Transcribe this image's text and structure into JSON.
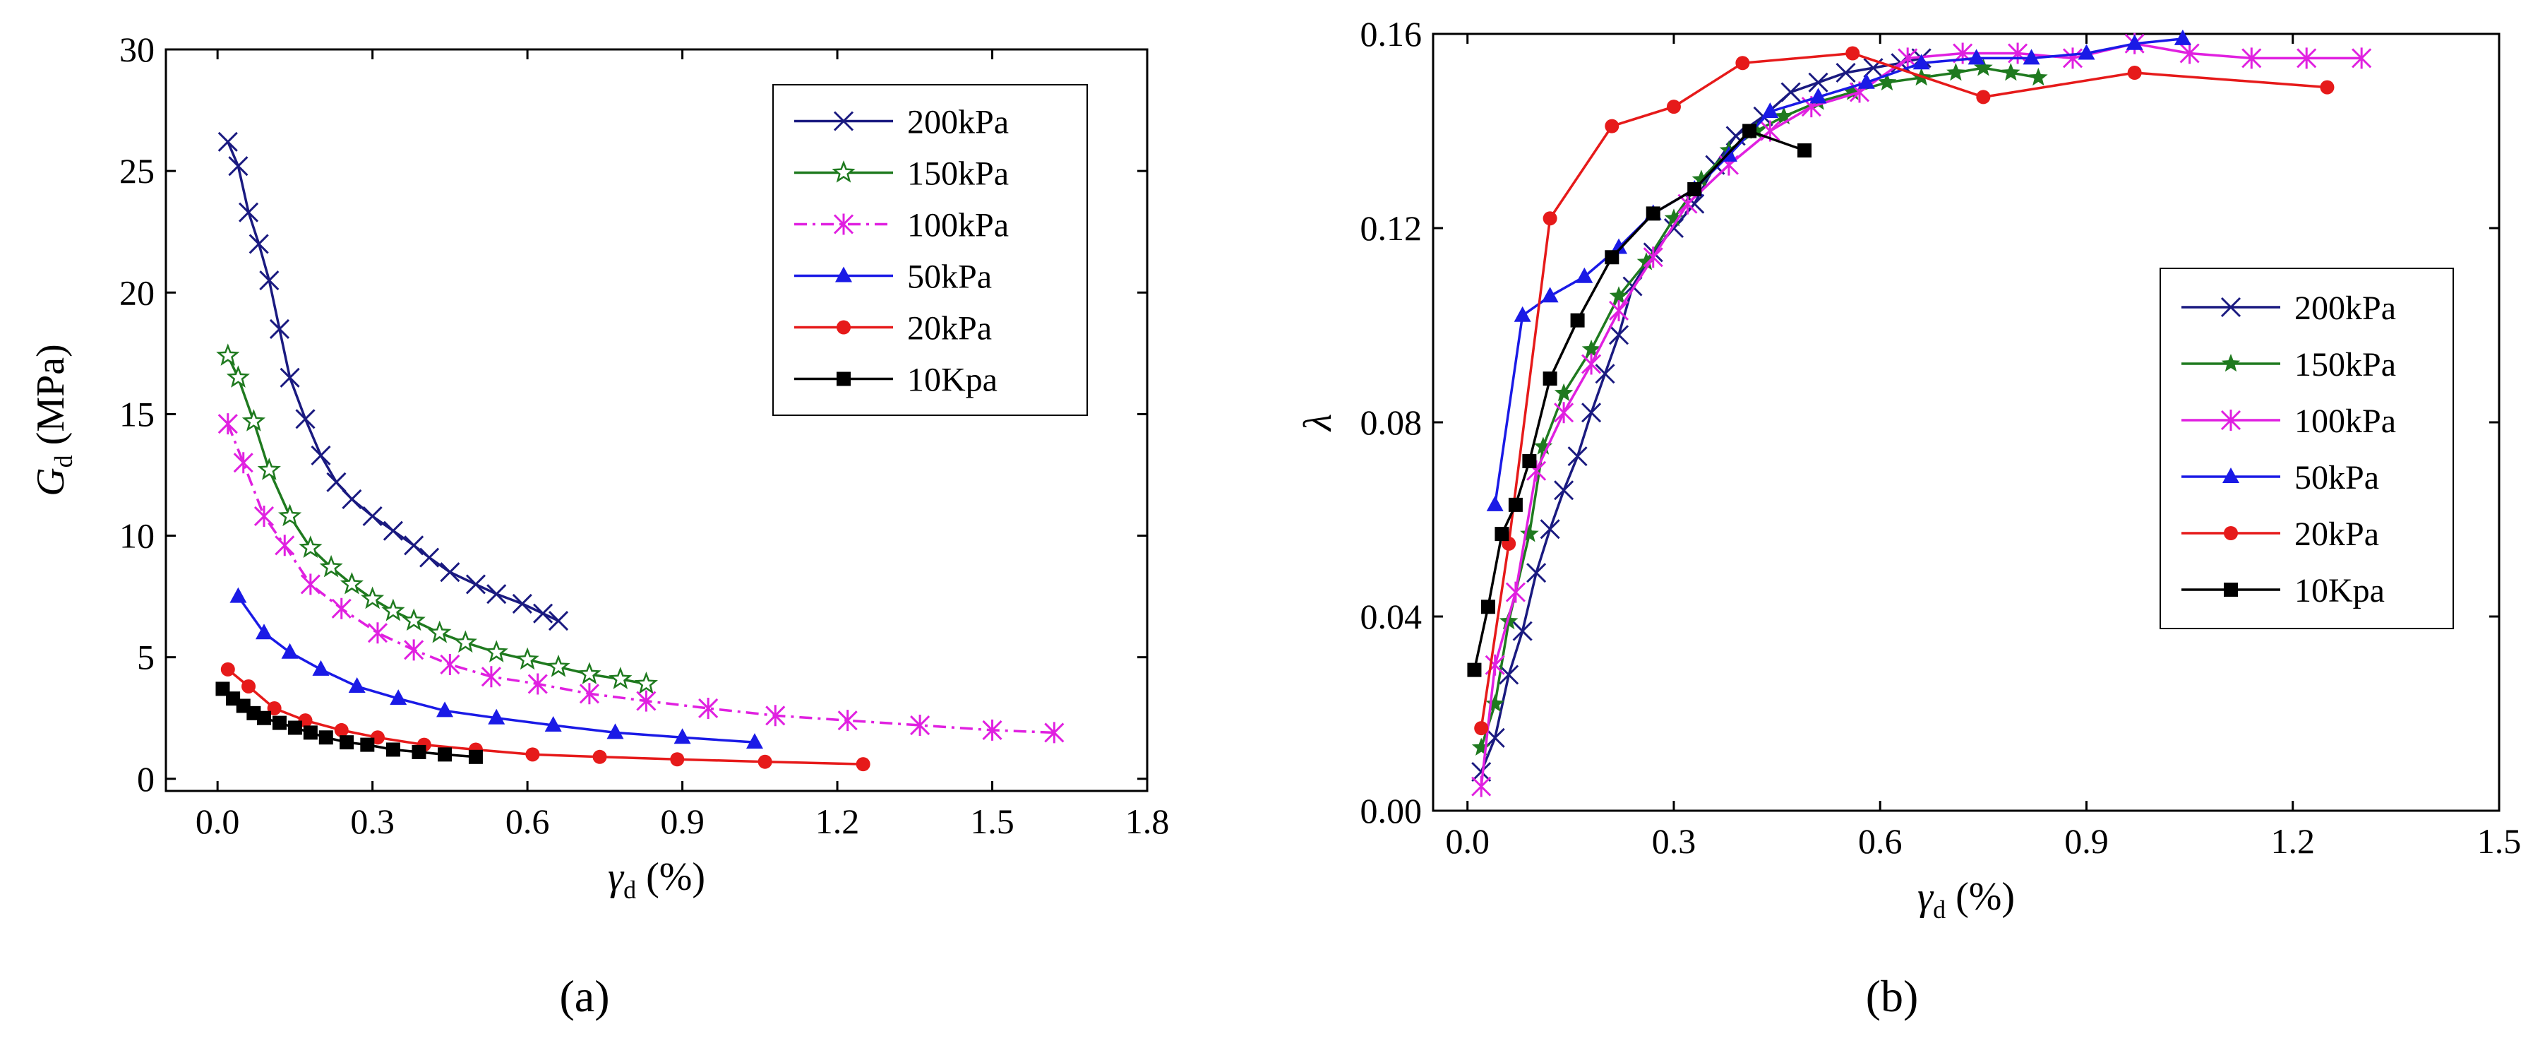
{
  "chart_data": [
    {
      "type": "line",
      "panel_label": "(a)",
      "ylabel_main": "G",
      "ylabel_sub": "d",
      "ylabel_unit": " (MPa)",
      "xlabel_main": "γ",
      "xlabel_sub": "d",
      "xlabel_unit": " (%)",
      "xlim": [
        -0.1,
        1.8
      ],
      "ylim": [
        -0.5,
        30
      ],
      "xticks": [
        0.0,
        0.3,
        0.6,
        0.9,
        1.2,
        1.5,
        1.8
      ],
      "xtick_labels": [
        "0.0",
        "0.3",
        "0.6",
        "0.9",
        "1.2",
        "1.5",
        "1.8"
      ],
      "yticks": [
        0,
        5,
        10,
        15,
        20,
        25,
        30
      ],
      "ytick_labels": [
        "0",
        "5",
        "10",
        "15",
        "20",
        "25",
        "30"
      ],
      "legend_position": "top-right",
      "series": [
        {
          "name": "200kPa",
          "color": "#1a1a80",
          "marker": "x",
          "dash": "",
          "x": [
            0.02,
            0.04,
            0.06,
            0.08,
            0.1,
            0.12,
            0.14,
            0.17,
            0.2,
            0.23,
            0.26,
            0.3,
            0.34,
            0.38,
            0.41,
            0.45,
            0.5,
            0.54,
            0.59,
            0.63,
            0.66
          ],
          "y": [
            26.2,
            25.2,
            23.3,
            22.0,
            20.5,
            18.5,
            16.5,
            14.8,
            13.3,
            12.2,
            11.5,
            10.8,
            10.2,
            9.6,
            9.1,
            8.5,
            8.0,
            7.6,
            7.2,
            6.8,
            6.5
          ]
        },
        {
          "name": "150kPa",
          "color": "#1f7a1f",
          "marker": "star-open",
          "dash": "",
          "x": [
            0.02,
            0.04,
            0.07,
            0.1,
            0.14,
            0.18,
            0.22,
            0.26,
            0.3,
            0.34,
            0.38,
            0.43,
            0.48,
            0.54,
            0.6,
            0.66,
            0.72,
            0.78,
            0.83
          ],
          "y": [
            17.4,
            16.5,
            14.7,
            12.7,
            10.8,
            9.5,
            8.7,
            8.0,
            7.4,
            6.9,
            6.5,
            6.0,
            5.6,
            5.2,
            4.9,
            4.6,
            4.3,
            4.1,
            3.9
          ]
        },
        {
          "name": "100kPa",
          "color": "#e020e0",
          "marker": "asterisk",
          "dash": "18,8,4,8",
          "x": [
            0.02,
            0.05,
            0.09,
            0.13,
            0.18,
            0.24,
            0.31,
            0.38,
            0.45,
            0.53,
            0.62,
            0.72,
            0.83,
            0.95,
            1.08,
            1.22,
            1.36,
            1.5,
            1.62
          ],
          "y": [
            14.6,
            13.0,
            10.8,
            9.6,
            8.0,
            7.0,
            6.0,
            5.3,
            4.7,
            4.2,
            3.9,
            3.5,
            3.2,
            2.9,
            2.6,
            2.4,
            2.2,
            2.0,
            1.9
          ]
        },
        {
          "name": "50kPa",
          "color": "#1a1ae6",
          "marker": "triangle",
          "dash": "",
          "x": [
            0.04,
            0.09,
            0.14,
            0.2,
            0.27,
            0.35,
            0.44,
            0.54,
            0.65,
            0.77,
            0.9,
            1.04
          ],
          "y": [
            7.5,
            6.0,
            5.2,
            4.5,
            3.8,
            3.3,
            2.8,
            2.5,
            2.2,
            1.9,
            1.7,
            1.5
          ]
        },
        {
          "name": "20kPa",
          "color": "#e61a1a",
          "marker": "circle",
          "dash": "",
          "x": [
            0.02,
            0.06,
            0.11,
            0.17,
            0.24,
            0.31,
            0.4,
            0.5,
            0.61,
            0.74,
            0.89,
            1.06,
            1.25
          ],
          "y": [
            4.5,
            3.8,
            2.9,
            2.4,
            2.0,
            1.7,
            1.4,
            1.2,
            1.0,
            0.9,
            0.8,
            0.7,
            0.6
          ]
        },
        {
          "name": "10Kpa",
          "color": "#000000",
          "marker": "square",
          "dash": "",
          "x": [
            0.01,
            0.03,
            0.05,
            0.07,
            0.09,
            0.12,
            0.15,
            0.18,
            0.21,
            0.25,
            0.29,
            0.34,
            0.39,
            0.44,
            0.5
          ],
          "y": [
            3.7,
            3.3,
            3.0,
            2.7,
            2.5,
            2.3,
            2.1,
            1.9,
            1.7,
            1.5,
            1.4,
            1.2,
            1.1,
            1.0,
            0.9
          ]
        }
      ]
    },
    {
      "type": "line",
      "panel_label": "(b)",
      "ylabel_main": "λ",
      "ylabel_sub": "",
      "ylabel_unit": "",
      "xlabel_main": "γ",
      "xlabel_sub": "d",
      "xlabel_unit": " (%)",
      "xlim": [
        -0.05,
        1.5
      ],
      "ylim": [
        0,
        0.16
      ],
      "xticks": [
        0.0,
        0.3,
        0.6,
        0.9,
        1.2,
        1.5
      ],
      "xtick_labels": [
        "0.0",
        "0.3",
        "0.6",
        "0.9",
        "1.2",
        "1.5"
      ],
      "yticks": [
        0,
        0.04,
        0.08,
        0.12,
        0.16
      ],
      "ytick_labels": [
        "0.00",
        "0.04",
        "0.08",
        "0.12",
        "0.16"
      ],
      "legend_position": "right",
      "series": [
        {
          "name": "200kPa",
          "color": "#1a1a80",
          "marker": "x",
          "dash": "",
          "x": [
            0.02,
            0.04,
            0.06,
            0.08,
            0.1,
            0.12,
            0.14,
            0.16,
            0.18,
            0.2,
            0.22,
            0.24,
            0.27,
            0.3,
            0.33,
            0.36,
            0.39,
            0.43,
            0.47,
            0.51,
            0.55,
            0.59,
            0.63,
            0.66
          ],
          "y": [
            0.008,
            0.015,
            0.028,
            0.037,
            0.049,
            0.058,
            0.066,
            0.073,
            0.082,
            0.09,
            0.098,
            0.108,
            0.115,
            0.12,
            0.125,
            0.133,
            0.139,
            0.143,
            0.148,
            0.15,
            0.152,
            0.153,
            0.154,
            0.155
          ]
        },
        {
          "name": "150kPa",
          "color": "#1f7a1f",
          "marker": "star",
          "dash": "",
          "x": [
            0.02,
            0.04,
            0.06,
            0.09,
            0.11,
            0.14,
            0.18,
            0.22,
            0.26,
            0.3,
            0.34,
            0.38,
            0.42,
            0.46,
            0.51,
            0.56,
            0.61,
            0.66,
            0.71,
            0.75,
            0.79,
            0.83
          ],
          "y": [
            0.013,
            0.022,
            0.039,
            0.057,
            0.075,
            0.086,
            0.095,
            0.106,
            0.113,
            0.122,
            0.13,
            0.136,
            0.14,
            0.143,
            0.146,
            0.148,
            0.15,
            0.151,
            0.152,
            0.153,
            0.152,
            0.151
          ]
        },
        {
          "name": "100kPa",
          "color": "#e020e0",
          "marker": "asterisk",
          "dash": "",
          "x": [
            0.02,
            0.04,
            0.07,
            0.1,
            0.14,
            0.18,
            0.22,
            0.27,
            0.32,
            0.38,
            0.44,
            0.5,
            0.57,
            0.64,
            0.72,
            0.8,
            0.88,
            0.97,
            1.05,
            1.14,
            1.22,
            1.3
          ],
          "y": [
            0.005,
            0.03,
            0.045,
            0.07,
            0.082,
            0.092,
            0.103,
            0.114,
            0.125,
            0.133,
            0.14,
            0.145,
            0.148,
            0.155,
            0.156,
            0.156,
            0.155,
            0.158,
            0.156,
            0.155,
            0.155,
            0.155
          ]
        },
        {
          "name": "50kPa",
          "color": "#1a1ae6",
          "marker": "triangle",
          "dash": "",
          "x": [
            0.04,
            0.08,
            0.12,
            0.17,
            0.22,
            0.27,
            0.33,
            0.38,
            0.44,
            0.51,
            0.58,
            0.66,
            0.74,
            0.82,
            0.9,
            0.97,
            1.04
          ],
          "y": [
            0.063,
            0.102,
            0.106,
            0.11,
            0.116,
            0.123,
            0.128,
            0.135,
            0.144,
            0.147,
            0.15,
            0.154,
            0.155,
            0.155,
            0.156,
            0.158,
            0.159
          ]
        },
        {
          "name": "20kPa",
          "color": "#e61a1a",
          "marker": "circle",
          "dash": "",
          "x": [
            0.02,
            0.06,
            0.12,
            0.21,
            0.3,
            0.4,
            0.56,
            0.75,
            0.97,
            1.25
          ],
          "y": [
            0.017,
            0.055,
            0.122,
            0.141,
            0.145,
            0.154,
            0.156,
            0.147,
            0.152,
            0.149
          ]
        },
        {
          "name": "10Kpa",
          "color": "#000000",
          "marker": "square",
          "dash": "",
          "x": [
            0.01,
            0.03,
            0.05,
            0.07,
            0.09,
            0.12,
            0.16,
            0.21,
            0.27,
            0.33,
            0.41,
            0.49
          ],
          "y": [
            0.029,
            0.042,
            0.057,
            0.063,
            0.072,
            0.089,
            0.101,
            0.114,
            0.123,
            0.128,
            0.14,
            0.136
          ]
        }
      ]
    }
  ]
}
